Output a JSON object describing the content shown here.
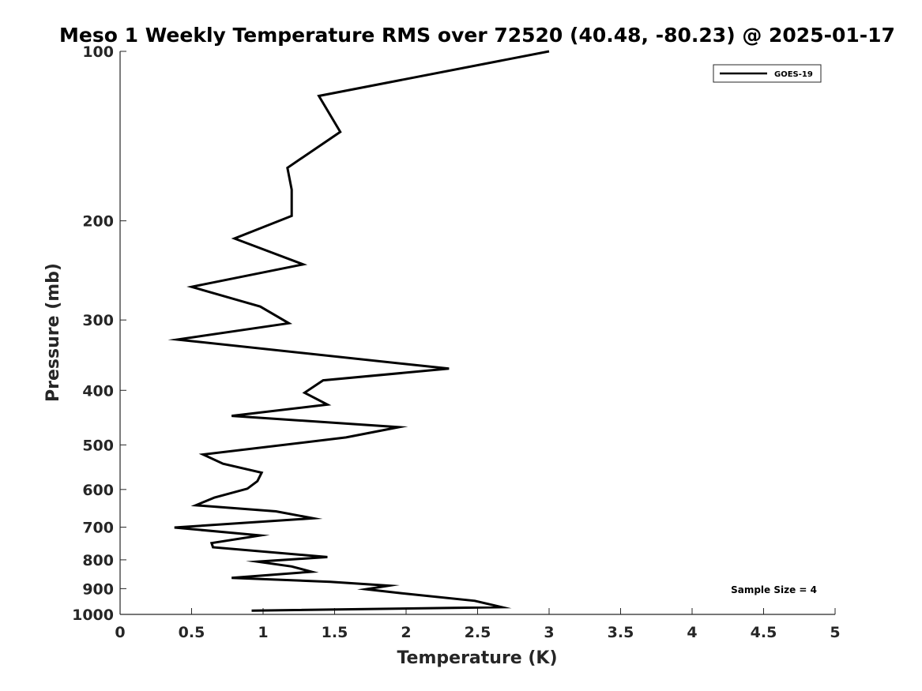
{
  "chart_data": {
    "type": "line",
    "title": "Meso 1 Weekly Temperature RMS over 72520 (40.48, -80.23) @ 2025-01-17",
    "xlabel": "Temperature (K)",
    "ylabel": "Pressure (mb)",
    "xlim": [
      0,
      5
    ],
    "ylim": [
      100,
      1000
    ],
    "yscale": "log",
    "y_reversed": true,
    "xticks": [
      0,
      0.5,
      1,
      1.5,
      2,
      2.5,
      3,
      3.5,
      4,
      4.5,
      5
    ],
    "xtick_labels": [
      "0",
      "0.5",
      "1",
      "1.5",
      "2",
      "2.5",
      "3",
      "3.5",
      "4",
      "4.5",
      "5"
    ],
    "yticks": [
      100,
      200,
      300,
      400,
      500,
      600,
      700,
      800,
      900,
      1000
    ],
    "ytick_labels": [
      "100",
      "200",
      "300",
      "400",
      "500",
      "600",
      "700",
      "800",
      "900",
      "1000"
    ],
    "grid": false,
    "legend_position": "top-right",
    "series": [
      {
        "name": "GOES-19",
        "color": "#000000",
        "x": [
          3.0,
          1.39,
          1.54,
          1.17,
          1.2,
          1.2,
          0.8,
          1.28,
          0.5,
          0.98,
          1.18,
          0.4,
          2.3,
          1.42,
          1.29,
          1.45,
          0.78,
          1.95,
          1.58,
          0.58,
          0.72,
          0.99,
          0.96,
          0.89,
          0.66,
          0.53,
          1.09,
          1.35,
          0.38,
          0.98,
          0.64,
          0.65,
          1.45,
          0.96,
          1.2,
          1.34,
          0.78,
          1.47,
          1.88,
          1.72,
          1.97,
          2.48,
          2.67,
          0.92
        ],
        "y": [
          100,
          120,
          139,
          161,
          176,
          196,
          215,
          239,
          262,
          284,
          304,
          325,
          366,
          384,
          404,
          424,
          444,
          465,
          485,
          520,
          540,
          560,
          580,
          598,
          620,
          640,
          656,
          675,
          701,
          724,
          747,
          760,
          791,
          806,
          822,
          840,
          861,
          875,
          889,
          902,
          917,
          946,
          971,
          985
        ]
      }
    ],
    "annotations": [
      "Sample Size = 4"
    ]
  }
}
